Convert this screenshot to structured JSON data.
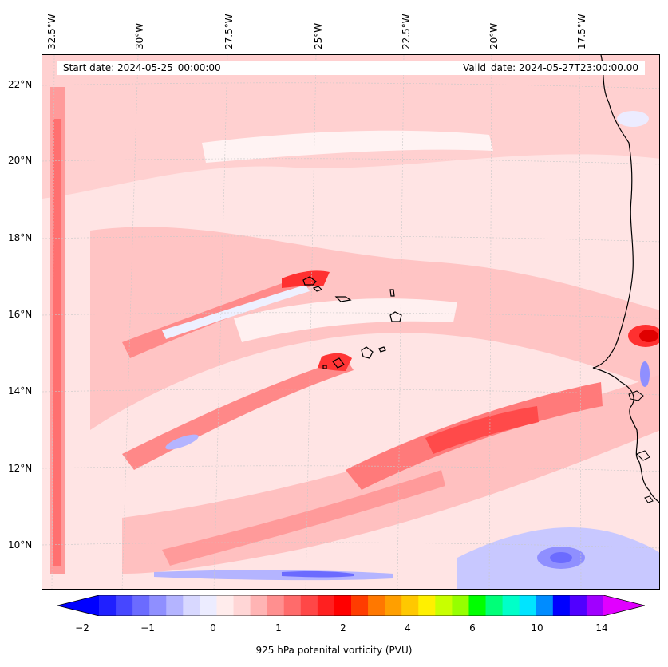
{
  "map": {
    "start_date": "Start date: 2024-05-25_00:00:00",
    "valid_date": "Valid_date: 2024-05-27T23:00:00.00",
    "lon_labels": [
      "32.5°W",
      "30°W",
      "27.5°W",
      "25°W",
      "22.5°W",
      "20°W",
      "17.5°W"
    ],
    "lat_labels": [
      "22°N",
      "20°N",
      "18°N",
      "16°N",
      "14°N",
      "12°N",
      "10°N"
    ],
    "region": "Cabo Verde islands and West African coast",
    "colors": {
      "background_low_positive": "#ffeaea",
      "moderate_positive": "#ffb0b0",
      "high_positive": "#ff4a4a",
      "negative": "#c8c8ff",
      "coastline": "#000000"
    }
  },
  "colorbar": {
    "label": "925 hPa potenital vorticity (PVU)",
    "tick_labels": [
      "−2",
      "−1",
      "0",
      "1",
      "2",
      "4",
      "6",
      "10",
      "14"
    ],
    "color_stops": [
      "#0000ff",
      "#2020ff",
      "#4747ff",
      "#6b6bff",
      "#8f8fff",
      "#b4b4ff",
      "#d8d8ff",
      "#ececff",
      "#ffecec",
      "#ffd6d6",
      "#ffb4b4",
      "#ff8f8f",
      "#ff6b6b",
      "#ff4747",
      "#ff2020",
      "#ff0000",
      "#ff3c00",
      "#ff7800",
      "#ff9f00",
      "#ffc800",
      "#fff000",
      "#c8ff00",
      "#96ff00",
      "#00ff00",
      "#00ff78",
      "#00ffc8",
      "#00e4ff",
      "#008cff",
      "#0000ff",
      "#5000ff",
      "#a000ff",
      "#e100ff"
    ]
  }
}
